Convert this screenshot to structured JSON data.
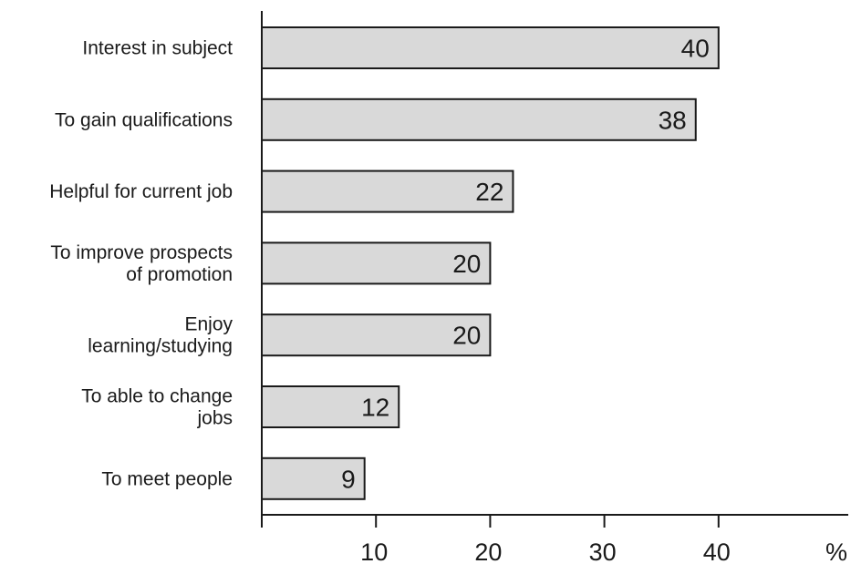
{
  "chart_data": {
    "type": "bar",
    "orientation": "horizontal",
    "categories": [
      [
        "Interest in subject"
      ],
      [
        "To gain qualifications"
      ],
      [
        "Helpful for current job"
      ],
      [
        "To improve prospects",
        "of promotion"
      ],
      [
        "Enjoy",
        "learning/studying"
      ],
      [
        "To able to change",
        "jobs"
      ],
      [
        "To meet people"
      ]
    ],
    "values": [
      40,
      38,
      22,
      20,
      20,
      12,
      9
    ],
    "value_labels": [
      "40",
      "38",
      "22",
      "20",
      "20",
      "12",
      "9"
    ],
    "x_ticks": [
      10,
      20,
      30,
      40
    ],
    "x_unit": "%",
    "xlim": [
      0,
      52
    ],
    "grid": false,
    "colors": {
      "bar_fill": "#d9d9d9",
      "bar_stroke": "#1a1a1a",
      "axis": "#1a1a1a"
    }
  }
}
